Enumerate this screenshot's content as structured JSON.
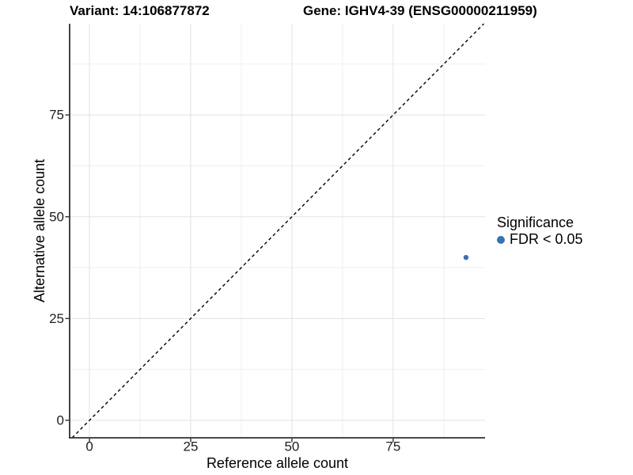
{
  "header": {
    "variant_title": "Variant: 14:106877872",
    "gene_title": "Gene: IGHV4-39 (ENSG00000211959)"
  },
  "legend": {
    "title": "Significance",
    "entries": [
      {
        "label": "FDR < 0.05",
        "color": "#3773b2"
      }
    ]
  },
  "chart_data": {
    "type": "scatter",
    "title": "Variant: 14:106877872",
    "subtitle": "Gene: IGHV4-39 (ENSG00000211959)",
    "xlabel": "Reference allele count",
    "ylabel": "Alternative allele count",
    "xlim": [
      -4.9,
      97.7
    ],
    "ylim": [
      -4.3,
      97.4
    ],
    "xticks": [
      0,
      25,
      50,
      75
    ],
    "yticks": [
      0,
      25,
      50,
      75
    ],
    "xticks_minor": [
      12.5,
      37.5,
      62.5,
      87.5
    ],
    "yticks_minor": [
      12.5,
      37.5,
      62.5,
      87.5
    ],
    "grid": "major and minor gridlines on white panel",
    "legend_position": "right",
    "series": [
      {
        "name": "FDR < 0.05",
        "color": "#3773b2",
        "points": [
          {
            "x": 93,
            "y": 40
          }
        ]
      }
    ],
    "reference_line": {
      "type": "identity y = x",
      "slope": 1,
      "intercept": 0,
      "style": "dashed",
      "color": "#000000"
    }
  },
  "colors": {
    "point": "#3773b2",
    "grid_major": "#e2e2e2",
    "grid_minor": "#efefef",
    "axis": "#2f2f2f",
    "tick_label": "#1f1f1f",
    "background": "#ffffff"
  }
}
